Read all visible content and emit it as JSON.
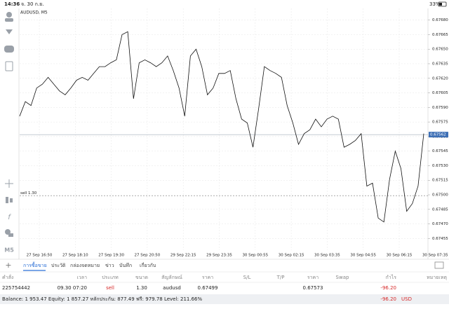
{
  "status_bar": {
    "time": "14:36",
    "date": "จ. 30 ก.ย.",
    "battery": "33%"
  },
  "toolbar": {
    "timeframe": "M5"
  },
  "chart_data": {
    "type": "line",
    "title": "AUDUSD, M5",
    "color": "#111111",
    "x_labels": [
      "27 Sep 16:50",
      "27 Sep 18:10",
      "27 Sep 19:30",
      "27 Sep 20:50",
      "29 Sep 22:15",
      "29 Sep 23:35",
      "30 Sep 00:55",
      "30 Sep 02:15",
      "30 Sep 03:35",
      "30 Sep 04:55",
      "30 Sep 06:15",
      "30 Sep 07:35"
    ],
    "values": [
      0.67581,
      0.67596,
      0.67592,
      0.6761,
      0.67614,
      0.67621,
      0.67614,
      0.67607,
      0.67603,
      0.6761,
      0.67618,
      0.67621,
      0.67618,
      0.67625,
      0.67632,
      0.67632,
      0.67636,
      0.67639,
      0.67665,
      0.67668,
      0.67599,
      0.67636,
      0.67639,
      0.67636,
      0.67632,
      0.67636,
      0.67643,
      0.67628,
      0.6761,
      0.67581,
      0.67643,
      0.6765,
      0.67632,
      0.67603,
      0.6761,
      0.67625,
      0.67625,
      0.67628,
      0.67599,
      0.67578,
      0.67574,
      0.67549,
      0.67589,
      0.67632,
      0.67628,
      0.67625,
      0.67621,
      0.67592,
      0.67574,
      0.67552,
      0.67563,
      0.67567,
      0.67578,
      0.6757,
      0.67578,
      0.67581,
      0.67578,
      0.67549,
      0.67552,
      0.67556,
      0.67563,
      0.67509,
      0.67512,
      0.67476,
      0.67472,
      0.67516,
      0.67545,
      0.67527,
      0.67483,
      0.67491,
      0.67509,
      0.67563
    ],
    "ylim": [
      0.67443,
      0.67692
    ],
    "yticks": [
      {
        "value": 0.6768,
        "label": "0.67680"
      },
      0.67665,
      {
        "value": 0.6765,
        "label": "0.67650"
      },
      0.67635,
      {
        "value": 0.6762,
        "label": "0.67620"
      },
      0.67605,
      {
        "value": 0.6759,
        "label": "0.67590"
      },
      0.67575,
      {
        "value": 0.6756,
        "label": "0.67560"
      },
      0.67545,
      {
        "value": 0.6753,
        "label": "0.67530"
      },
      0.67515,
      {
        "value": 0.675,
        "label": "0.67500"
      },
      0.67485,
      {
        "value": 0.6747,
        "label": "0.67470"
      },
      0.67455
    ],
    "grid": true,
    "current_price": {
      "value": 0.67562,
      "color": "#3d6fb5"
    },
    "order_line": {
      "label": "sell 1.30",
      "value": 0.67499
    }
  },
  "tabs": [
    "การซื้อขาย",
    "ประวัติ",
    "กล่องจดหมาย",
    "ข่าว",
    "บันทึก",
    "เกี่ยวกับ"
  ],
  "table": {
    "headers": [
      "คำสั่ง",
      "เวลา",
      "ประเภท",
      "ขนาด",
      "สัญลักษณ์",
      "ราคา",
      "S/L",
      "T/P",
      "ราคา",
      "Swap",
      "กำไร",
      "หมายเหตุ"
    ],
    "rows": [
      [
        "225754442",
        "09.30 07:20",
        "sell",
        "1.30",
        "audusd",
        "0.67499",
        "",
        "",
        "0.67573",
        "",
        "-96.20",
        ""
      ]
    ]
  },
  "footer": {
    "summary": "Balance: 1 953.47 Equity: 1 857.27 หลักประกัน: 877.49 ฟรี: 979.78 Level: 211.66%",
    "profit": "-96.20",
    "currency": "USD"
  }
}
